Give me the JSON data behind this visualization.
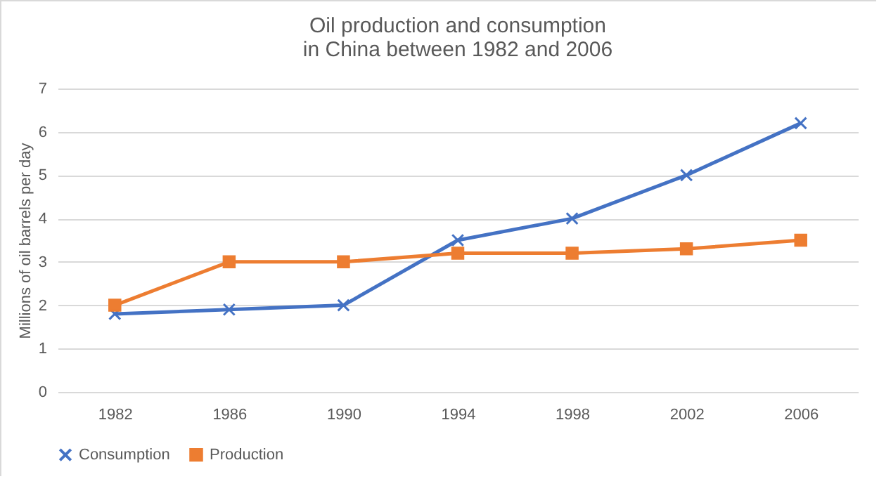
{
  "chart_data": {
    "type": "line",
    "title": "Oil production and consumption in China between 1982 and 2006",
    "ylabel": "Millions of oil barrels per day",
    "categories": [
      "1982",
      "1986",
      "1990",
      "1994",
      "1998",
      "2002",
      "2006"
    ],
    "series": [
      {
        "name": "Consumption",
        "color": "#4472c4",
        "marker": "cross",
        "values": [
          1.8,
          1.9,
          2.0,
          3.5,
          4.0,
          5.0,
          6.2
        ]
      },
      {
        "name": "Production",
        "color": "#ed7d31",
        "marker": "square",
        "values": [
          2.0,
          3.0,
          3.0,
          3.2,
          3.2,
          3.3,
          3.5
        ]
      }
    ],
    "ylim": [
      0,
      7
    ],
    "yticks": [
      0,
      1,
      2,
      3,
      4,
      5,
      6,
      7
    ],
    "grid": "y",
    "legend": "bottom",
    "line_style": "solid"
  }
}
